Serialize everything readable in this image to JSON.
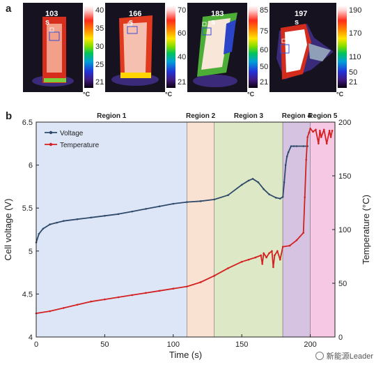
{
  "panel_a_label": "a",
  "panel_b_label": "b",
  "thermal_images": [
    {
      "time": "103 s",
      "ticks": [
        "40",
        "35",
        "30",
        "25",
        "21"
      ],
      "unit": "°C"
    },
    {
      "time": "166 s",
      "ticks": [
        "70",
        "60",
        "40",
        "21"
      ],
      "unit": "°C"
    },
    {
      "time": "183 s",
      "ticks": [
        "85",
        "75",
        "60",
        "50",
        "21"
      ],
      "unit": "°C"
    },
    {
      "time": "197 s",
      "ticks": [
        "190",
        "170",
        "110",
        "50",
        "21"
      ],
      "unit": "°C"
    }
  ],
  "watermark": "新能源Leader",
  "chart_data": {
    "type": "line",
    "xlabel": "Time (s)",
    "ylabel": "Cell voltage (V)",
    "y2label": "Temperature (°C)",
    "xlim": [
      0,
      218
    ],
    "ylim": [
      4,
      6.5
    ],
    "y2lim": [
      0,
      200
    ],
    "xticks": [
      "0",
      "50",
      "100",
      "150",
      "200"
    ],
    "xtick_values": [
      0,
      50,
      100,
      150,
      200
    ],
    "yticks": [
      "4",
      "4.5",
      "5",
      "5.5",
      "6",
      "6.5"
    ],
    "ytick_values": [
      4,
      4.5,
      5,
      5.5,
      6,
      6.5
    ],
    "y2ticks": [
      "0",
      "50",
      "100",
      "150",
      "200"
    ],
    "y2tick_values": [
      0,
      50,
      100,
      150,
      200
    ],
    "legend_position": "top-left",
    "regions": [
      {
        "name": "Region 1",
        "x0": 0,
        "x1": 110,
        "color": "#dde6f7"
      },
      {
        "name": "Region 2",
        "x0": 110,
        "x1": 130,
        "color": "#f9e2d2"
      },
      {
        "name": "Region 3",
        "x0": 130,
        "x1": 180,
        "color": "#dde8c6"
      },
      {
        "name": "Region 4",
        "x0": 180,
        "x1": 200,
        "color": "#d6c3e2"
      },
      {
        "name": "Region 5",
        "x0": 200,
        "x1": 218,
        "color": "#f7c8e4"
      }
    ],
    "series": [
      {
        "name": "Voltage",
        "axis": "left",
        "color": "#2f4a6a",
        "x": [
          0,
          2,
          5,
          10,
          15,
          20,
          30,
          40,
          50,
          60,
          70,
          80,
          90,
          100,
          110,
          120,
          130,
          140,
          150,
          155,
          158,
          162,
          166,
          170,
          175,
          178,
          180,
          181,
          182,
          183,
          184,
          186,
          188,
          190,
          195,
          198
        ],
        "values": [
          5.1,
          5.2,
          5.26,
          5.31,
          5.33,
          5.35,
          5.37,
          5.39,
          5.41,
          5.43,
          5.46,
          5.49,
          5.52,
          5.55,
          5.57,
          5.58,
          5.6,
          5.65,
          5.77,
          5.82,
          5.84,
          5.8,
          5.72,
          5.66,
          5.62,
          5.61,
          5.63,
          5.8,
          6.0,
          6.1,
          6.15,
          6.22,
          6.22,
          6.22,
          6.22,
          6.22
        ]
      },
      {
        "name": "Temperature",
        "axis": "right",
        "color": "#d42020",
        "x": [
          0,
          10,
          20,
          30,
          40,
          50,
          60,
          70,
          80,
          90,
          100,
          110,
          120,
          130,
          140,
          150,
          155,
          160,
          164,
          165,
          166,
          168,
          170,
          172,
          173,
          174,
          176,
          178,
          180,
          185,
          190,
          195,
          196,
          197,
          198,
          199,
          200,
          202,
          204,
          206,
          207,
          208,
          210,
          212,
          214,
          215,
          216
        ],
        "values": [
          22,
          24,
          27,
          30,
          33,
          35,
          37,
          39,
          41,
          43,
          45,
          47,
          51,
          57,
          64,
          70,
          72,
          74,
          76,
          68,
          78,
          74,
          78,
          80,
          65,
          76,
          80,
          72,
          84,
          85,
          90,
          97,
          130,
          165,
          186,
          190,
          194,
          191,
          193,
          180,
          192,
          186,
          193,
          180,
          192,
          186,
          192
        ]
      }
    ]
  }
}
